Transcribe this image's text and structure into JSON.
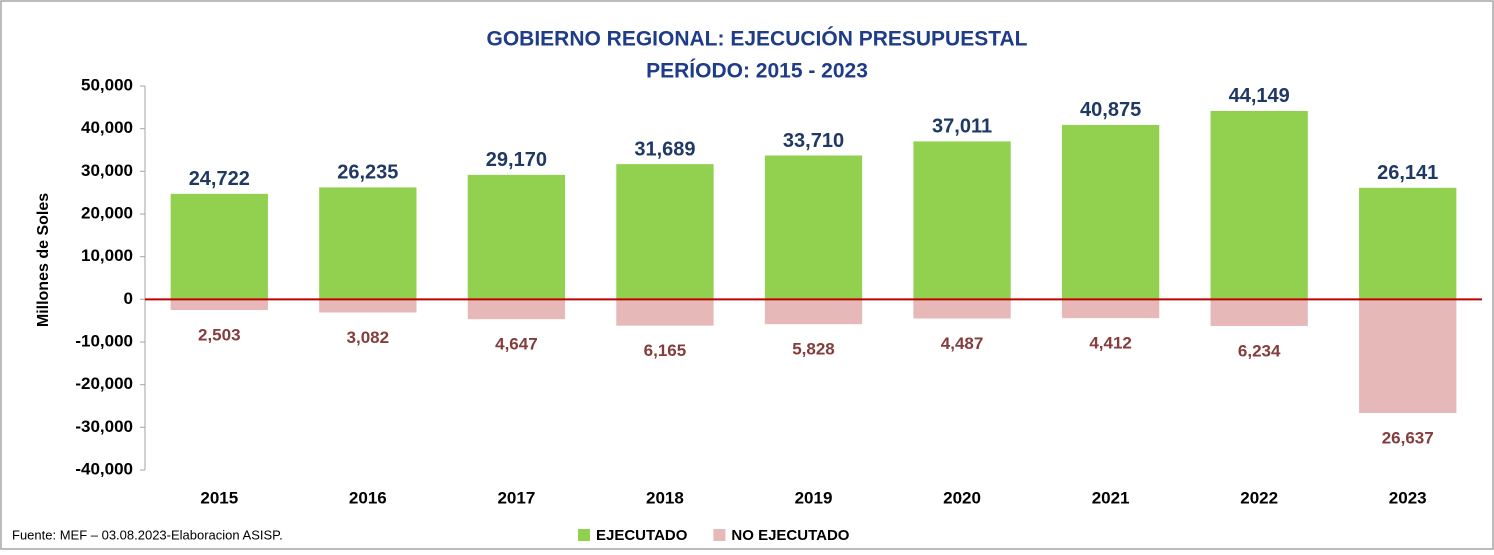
{
  "chart_data": {
    "type": "bar",
    "title": "GOBIERNO REGIONAL: EJECUCIÓN PRESUPUESTAL",
    "subtitle": "PERÍODO: 2015 - 2023",
    "y_label": "Millones de Soles",
    "source": "Fuente: MEF – 03.08.2023-Elaboracion ASISP.",
    "categories": [
      "2015",
      "2016",
      "2017",
      "2018",
      "2019",
      "2020",
      "2021",
      "2022",
      "2023"
    ],
    "series": [
      {
        "name": "EJECUTADO",
        "color": "#92d050",
        "values": [
          24722,
          26235,
          29170,
          31689,
          33710,
          37011,
          40875,
          44149,
          26141
        ],
        "value_labels": [
          "24,722",
          "26,235",
          "29,170",
          "31,689",
          "33,710",
          "37,011",
          "40,875",
          "44,149",
          "26,141"
        ]
      },
      {
        "name": "NO EJECUTADO",
        "color": "#e6b8b7",
        "values": [
          -2503,
          -3082,
          -4647,
          -6165,
          -5828,
          -4487,
          -4412,
          -6234,
          -26637
        ],
        "value_labels": [
          "2,503",
          "3,082",
          "4,647",
          "6,165",
          "5,828",
          "4,487",
          "4,412",
          "6,234",
          "26,637"
        ]
      }
    ],
    "ylim": [
      -40000,
      50000
    ],
    "yticks": [
      {
        "value": -40000,
        "label": "-40,000"
      },
      {
        "value": -30000,
        "label": "-30,000"
      },
      {
        "value": -20000,
        "label": "-20,000"
      },
      {
        "value": -10000,
        "label": "-10,000"
      },
      0,
      {
        "value": 10000,
        "label": "10,000"
      },
      {
        "value": 20000,
        "label": "20,000"
      },
      {
        "value": 30000,
        "label": "30,000"
      },
      {
        "value": 40000,
        "label": "40,000"
      },
      {
        "value": 50000,
        "label": "50,000"
      }
    ],
    "legend": "bottom",
    "grid": false
  }
}
